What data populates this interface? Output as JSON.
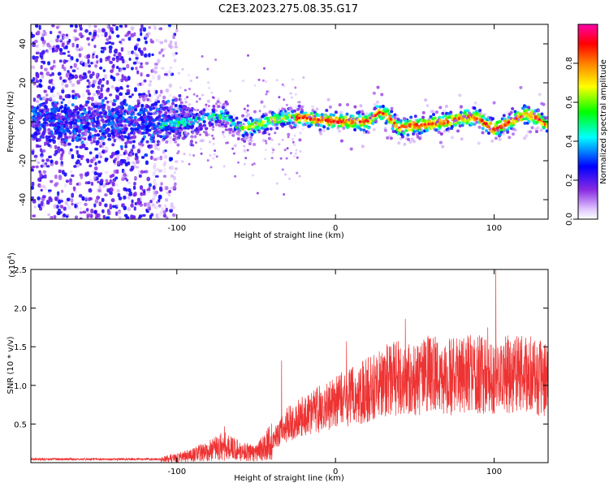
{
  "chart_data": [
    {
      "type": "heatmap",
      "title": "C2E3.2023.275.08.35.G17",
      "xlabel": "Height of straight line (km)",
      "ylabel": "Frequency (Hz)",
      "xlim": [
        -192,
        134
      ],
      "ylim": [
        -50,
        50
      ],
      "xticks": [
        -100,
        0,
        100
      ],
      "xtick_labels": [
        "-100",
        "0",
        "100"
      ],
      "yticks": [
        -40,
        -20,
        0,
        20,
        40
      ],
      "ytick_labels": [
        "-40",
        "-20",
        "0",
        "20",
        "40"
      ],
      "colorbar": {
        "label": "Normalized spectral amplitude",
        "range": [
          0,
          1
        ],
        "ticks": [
          0,
          0.2,
          0.4,
          0.6,
          0.8
        ],
        "tick_labels": [
          "0.0",
          "0.2",
          "0.4",
          "0.6",
          "0.8"
        ],
        "colors": [
          "#ffffff",
          "#e0c8ff",
          "#8a2be2",
          "#0000ff",
          "#00ffff",
          "#00ff00",
          "#ffff00",
          "#ff8000",
          "#ff0000",
          "#ff00aa"
        ]
      },
      "ridge": {
        "x": [
          -110,
          -100,
          -90,
          -80,
          -70,
          -60,
          -50,
          -40,
          -30,
          -20,
          -10,
          0,
          10,
          20,
          28,
          33,
          40,
          50,
          60,
          70,
          80,
          90,
          100,
          110,
          120,
          127,
          134
        ],
        "y": [
          -2,
          -1,
          0,
          2,
          3,
          -4,
          -2,
          1,
          2,
          2,
          1,
          0,
          0,
          0,
          5,
          3,
          -3,
          -2,
          -1,
          0,
          2,
          2,
          -4,
          0,
          4,
          2,
          -2
        ]
      }
    },
    {
      "type": "line",
      "xlabel": "Height of straight line (km)",
      "ylabel": "SNR (10 * v/v)",
      "y_multiplier_label": "(x10",
      "y_multiplier_exp": "4",
      "xlim": [
        -192,
        134
      ],
      "ylim": [
        0,
        2.5
      ],
      "xticks": [
        -100,
        0,
        100
      ],
      "xtick_labels": [
        "-100",
        "0",
        "100"
      ],
      "yticks": [
        0.5,
        1.0,
        1.5,
        2.0,
        2.5
      ],
      "ytick_labels": [
        "0.5",
        "1.0",
        "1.5",
        "2.0",
        "2.5"
      ],
      "series_color": "#ee3333",
      "envelope": {
        "x": [
          -192,
          -150,
          -110,
          -95,
          -80,
          -70,
          -60,
          -50,
          -40,
          -30,
          -20,
          -10,
          0,
          10,
          20,
          30,
          40,
          50,
          60,
          70,
          80,
          90,
          100,
          110,
          120,
          134
        ],
        "y": [
          0.04,
          0.04,
          0.04,
          0.08,
          0.15,
          0.22,
          0.15,
          0.12,
          0.28,
          0.5,
          0.6,
          0.7,
          0.78,
          0.85,
          0.95,
          1.05,
          1.1,
          1.05,
          1.15,
          1.1,
          1.15,
          1.15,
          1.1,
          1.15,
          1.15,
          1.05
        ]
      },
      "peaks": [
        {
          "x": -70,
          "y": 0.47
        },
        {
          "x": -34,
          "y": 1.32
        },
        {
          "x": 7,
          "y": 1.57
        },
        {
          "x": 44,
          "y": 1.86
        },
        {
          "x": 96,
          "y": 1.75
        },
        {
          "x": 101,
          "y": 2.5
        }
      ]
    }
  ]
}
